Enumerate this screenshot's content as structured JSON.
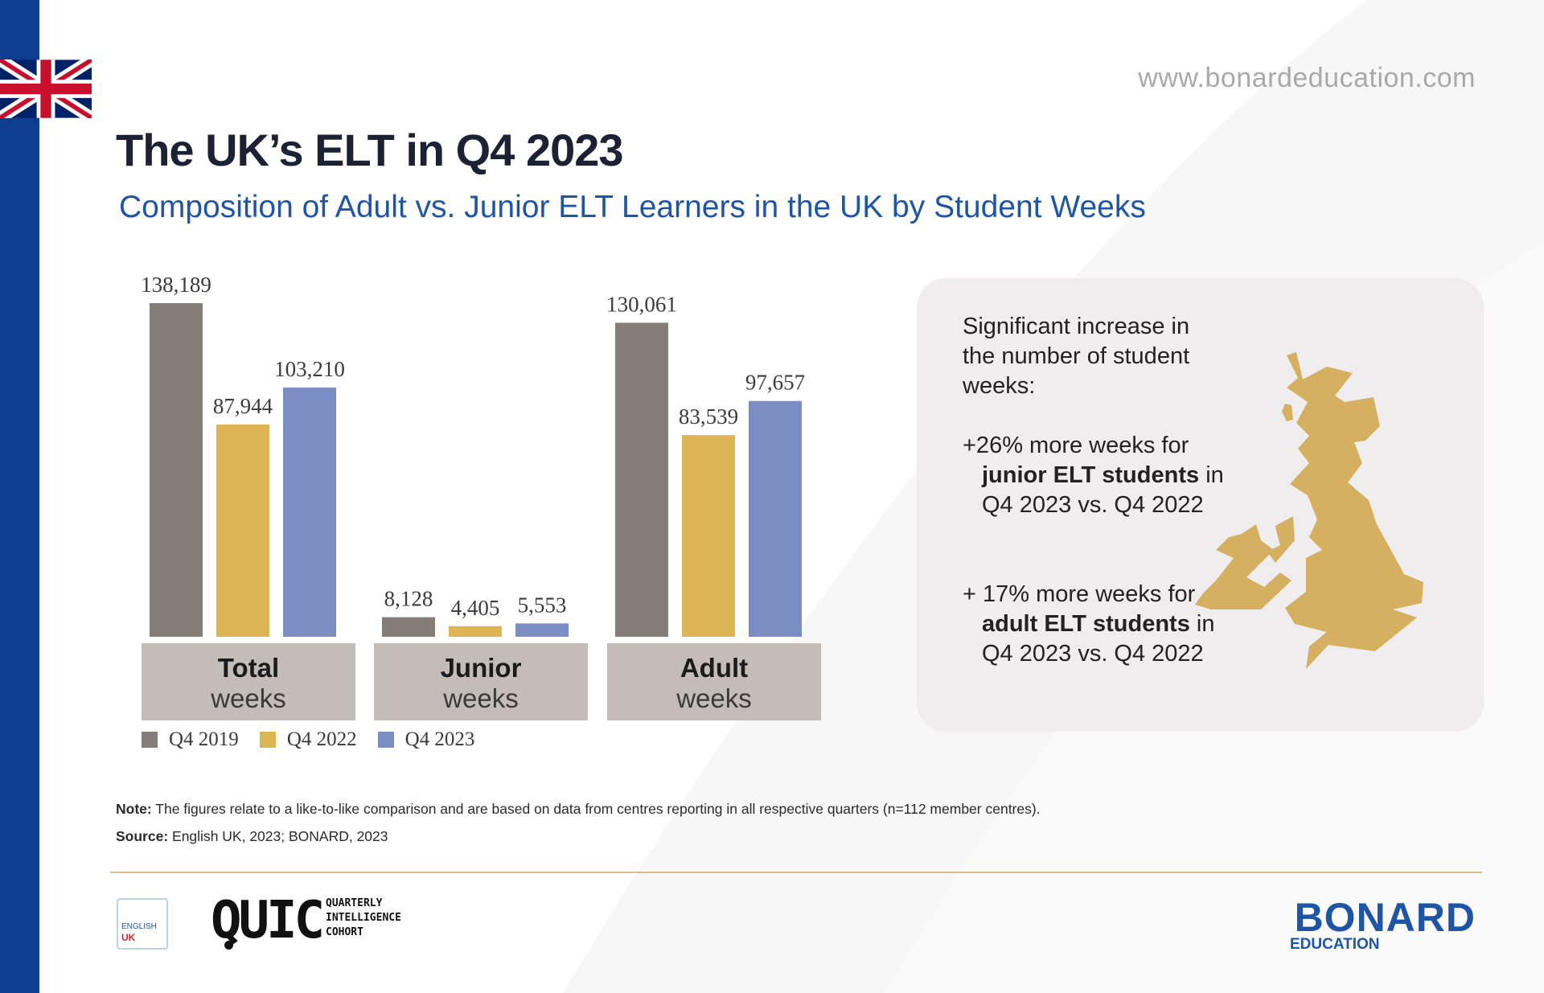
{
  "header": {
    "url": "www.bonardeducation.com",
    "title": "The UK’s ELT in Q4 2023",
    "subtitle": "Composition of Adult vs. Junior ELT Learners in the UK by Student Weeks"
  },
  "chart_data": {
    "type": "bar",
    "categories": [
      {
        "bold": "Total",
        "light": "weeks"
      },
      {
        "bold": "Junior",
        "light": "weeks"
      },
      {
        "bold": "Adult",
        "light": "weeks"
      }
    ],
    "series": [
      {
        "name": "Q4 2019",
        "color": "#857d77",
        "values": [
          138189,
          8128,
          130061
        ],
        "labels": [
          "138,189",
          "8,128",
          "130,061"
        ]
      },
      {
        "name": "Q4 2022",
        "color": "#ddb555",
        "values": [
          87944,
          4405,
          83539
        ],
        "labels": [
          "87,944",
          "4,405",
          "83,539"
        ]
      },
      {
        "name": "Q4 2023",
        "color": "#7b8ec4",
        "values": [
          103210,
          5553,
          97657
        ],
        "labels": [
          "103,210",
          "5,553",
          "97,657"
        ]
      }
    ],
    "ylim": [
      0,
      138189
    ],
    "legend_position": "bottom",
    "grid": false
  },
  "callout": {
    "intro": "Significant increase in the number of student weeks:",
    "junior_prefix": "+26% more weeks for",
    "junior_bold": "junior ELT students",
    "junior_suffix": "in Q4 2023 vs. Q4 2022",
    "adult_prefix": "+ 17% more weeks for",
    "adult_bold": "adult ELT students",
    "adult_suffix": "in Q4 2023 vs. Q4 2022"
  },
  "footer": {
    "note_label": "Note:",
    "note_text": "The figures relate to a like-to-like comparison and are based on data from centres reporting in all respective quarters (n=112 member centres).",
    "source_label": "Source:",
    "source_text": "English UK, 2023; BONARD, 2023",
    "english_uk_logo": {
      "line1": "ENGLISH",
      "line2": "UK"
    },
    "quic_logo": {
      "mark": "QUIC",
      "line1": "QUARTERLY",
      "line2": "INTELLIGENCE",
      "line3": "COHORT"
    },
    "bonard_logo": {
      "name": "BONARD",
      "sub": "EDUCATION"
    }
  },
  "colors": {
    "brand_blue": "#1f55a5",
    "side_bar": "#0e3e8f",
    "gold": "#ddb555",
    "label_box": "#c4bcb8",
    "callout_bg": "#efeded"
  }
}
